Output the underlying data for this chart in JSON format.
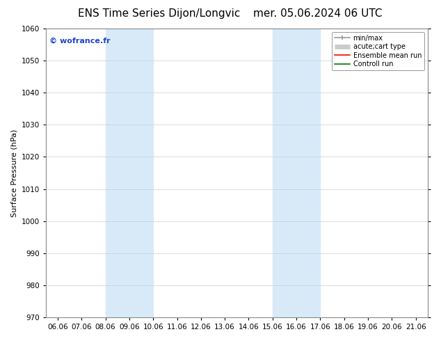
{
  "title": "ENS Time Series Dijon/Longvic",
  "title2": "mer. 05.06.2024 06 UTC",
  "ylabel": "Surface Pressure (hPa)",
  "ylim": [
    970,
    1060
  ],
  "yticks": [
    970,
    980,
    990,
    1000,
    1010,
    1020,
    1030,
    1040,
    1050,
    1060
  ],
  "xtick_labels": [
    "06.06",
    "07.06",
    "08.06",
    "09.06",
    "10.06",
    "11.06",
    "12.06",
    "13.06",
    "14.06",
    "15.06",
    "16.06",
    "17.06",
    "18.06",
    "19.06",
    "20.06",
    "21.06"
  ],
  "n_xticks": 16,
  "shaded_regions": [
    {
      "xmin": 2,
      "xmax": 4,
      "color": "#d8eaf8"
    },
    {
      "xmin": 9,
      "xmax": 11,
      "color": "#d8eaf8"
    }
  ],
  "watermark": "© wofrance.fr",
  "watermark_color": "#2244cc",
  "background_color": "#ffffff",
  "plot_bg_color": "#ffffff",
  "legend_items": [
    {
      "label": "min/max",
      "color": "#999999",
      "lw": 1.2
    },
    {
      "label": "acute;cart type",
      "color": "#cccccc",
      "lw": 5
    },
    {
      "label": "Ensemble mean run",
      "color": "#ff0000",
      "lw": 1.2
    },
    {
      "label": "Controll run",
      "color": "#007700",
      "lw": 1.2
    }
  ],
  "title_fontsize": 11,
  "ylabel_fontsize": 8,
  "tick_fontsize": 7.5,
  "watermark_fontsize": 8,
  "legend_fontsize": 7
}
